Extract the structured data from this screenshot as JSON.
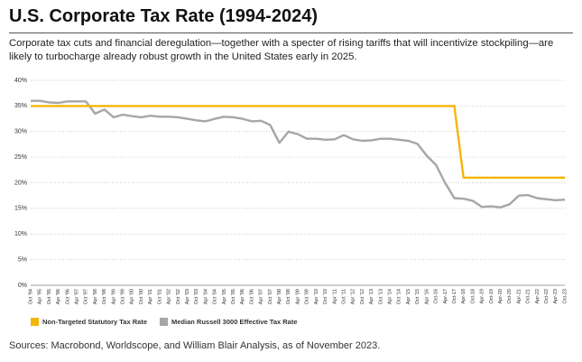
{
  "chart_data": {
    "type": "line",
    "title": "U.S. Corporate Tax Rate (1994-2024)",
    "subtitle": "Corporate tax cuts and financial deregulation—together with a specter of rising tariffs that will incentivize stockpiling—are likely to turbocharge already robust growth in the United States early in 2025.",
    "source": "Sources: Macrobond, Worldscope, and William Blair Analysis, as of November 2023.",
    "categories": [
      "Oct '94",
      "Apr '95",
      "Oct '95",
      "Apr '96",
      "Oct '96",
      "Apr '97",
      "Oct '97",
      "Apr '98",
      "Oct '98",
      "Apr '99",
      "Oct '99",
      "Apr '00",
      "Oct '00",
      "Apr '01",
      "Oct '01",
      "Apr '02",
      "Oct '02",
      "Apr '03",
      "Oct '03",
      "Apr '04",
      "Oct '04",
      "Apr '05",
      "Oct '05",
      "Apr '06",
      "Oct '06",
      "Apr '07",
      "Oct '07",
      "Apr '08",
      "Oct '08",
      "Apr '09",
      "Oct '09",
      "Apr '10",
      "Oct '10",
      "Apr '11",
      "Oct '11",
      "Apr '12",
      "Oct '12",
      "Apr '13",
      "Oct '13",
      "Apr '14",
      "Oct '14",
      "Apr '15",
      "Oct '15",
      "Apr '16",
      "Oct-16",
      "Apr-17",
      "Oct-17",
      "Apr-18",
      "Oct-18",
      "Apr-19",
      "Oct-19",
      "Apr-20",
      "Oct-20",
      "Apr-21",
      "Oct-21",
      "Apr-22",
      "Oct-22",
      "Apr-23",
      "Oct-23"
    ],
    "series": [
      {
        "name": "Non-Targeted Statutory Tax Rate",
        "color": "#f5b50a",
        "values": [
          35,
          35,
          35,
          35,
          35,
          35,
          35,
          35,
          35,
          35,
          35,
          35,
          35,
          35,
          35,
          35,
          35,
          35,
          35,
          35,
          35,
          35,
          35,
          35,
          35,
          35,
          35,
          35,
          35,
          35,
          35,
          35,
          35,
          35,
          35,
          35,
          35,
          35,
          35,
          35,
          35,
          35,
          35,
          35,
          35,
          35,
          35,
          21,
          21,
          21,
          21,
          21,
          21,
          21,
          21,
          21,
          21,
          21,
          21
        ]
      },
      {
        "name": "Median Russell 3000 Effective Tax Rate",
        "color": "#a6a6a6",
        "values": [
          36,
          36,
          35.7,
          35.6,
          35.9,
          35.9,
          35.9,
          33.5,
          34.3,
          32.8,
          33.3,
          33,
          32.8,
          33.1,
          32.9,
          32.9,
          32.8,
          32.5,
          32.2,
          32,
          32.5,
          32.9,
          32.8,
          32.5,
          32,
          32.1,
          31.3,
          27.8,
          30,
          29.5,
          28.6,
          28.6,
          28.4,
          28.5,
          29.3,
          28.5,
          28.2,
          28.3,
          28.6,
          28.6,
          28.4,
          28.2,
          27.6,
          25.3,
          23.5,
          20,
          17,
          16.9,
          16.5,
          15.3,
          15.4,
          15.2,
          15.8,
          17.5,
          17.6,
          17,
          16.8,
          16.6,
          16.7
        ]
      }
    ],
    "ylim": [
      0,
      40
    ],
    "yticks": [
      {
        "value": 0,
        "label": "0%"
      },
      {
        "value": 5,
        "label": "5%"
      },
      {
        "value": 10,
        "label": "10%"
      },
      {
        "value": 15,
        "label": "15%"
      },
      {
        "value": 20,
        "label": "20%"
      },
      {
        "value": 25,
        "label": "25%"
      },
      {
        "value": 30,
        "label": "30%"
      },
      {
        "value": 35,
        "label": "35%"
      },
      {
        "value": 40,
        "label": "40%"
      }
    ],
    "grid": true,
    "legend": "bottom"
  }
}
